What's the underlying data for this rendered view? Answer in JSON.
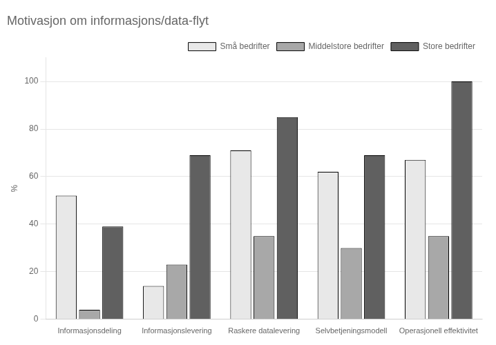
{
  "chart_data": {
    "type": "bar",
    "title": "Motivasjon om informasjons/data-flyt",
    "y_label": "%",
    "categories": [
      "Informasjonsdeling",
      "Informasjonslevering",
      "Raskere datalevering",
      "Selvbetjeningsmodell",
      "Operasjonell effektivitet"
    ],
    "series": [
      {
        "name": "Små bedrifter",
        "color": "#e8e8e8",
        "values": [
          52,
          14,
          71,
          62,
          67
        ]
      },
      {
        "name": "Middelstore bedrifter",
        "color": "#a8a8a8",
        "values": [
          4,
          23,
          35,
          30,
          35
        ]
      },
      {
        "name": "Store bedrifter",
        "color": "#606060",
        "values": [
          39,
          69,
          85,
          69,
          100
        ]
      }
    ],
    "ylim": [
      0,
      110
    ],
    "yticks": [
      0,
      20,
      40,
      60,
      80,
      100
    ],
    "grid": true,
    "legend": "upper right"
  }
}
